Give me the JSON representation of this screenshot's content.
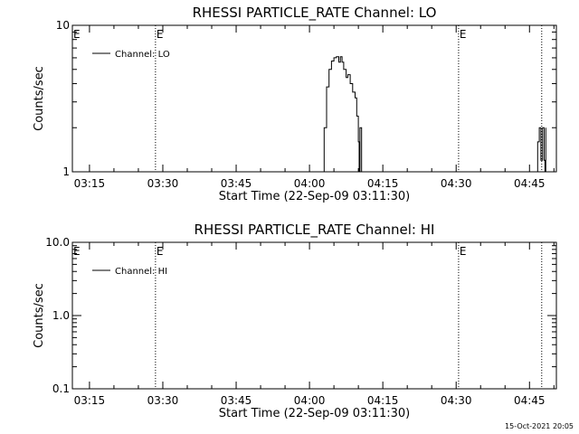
{
  "footer": {
    "timestamp": "15-Oct-2021 20:05"
  },
  "chart_data": [
    {
      "type": "line",
      "title": "RHESSI PARTICLE_RATE Channel: LO",
      "xlabel": "Start Time (22-Sep-09 03:11:30)",
      "ylabel": "Counts/sec",
      "y_scale": "log",
      "xlim": [
        "03:11:30",
        "04:50:30"
      ],
      "ylim": [
        1,
        10
      ],
      "y_ticks": [
        1,
        10
      ],
      "y_tick_labels": [
        "1",
        "10"
      ],
      "x_ticks": [
        "03:15",
        "03:30",
        "03:45",
        "04:00",
        "04:15",
        "04:30",
        "04:45"
      ],
      "grid": false,
      "legend_position": "top-left",
      "event_lines": [
        {
          "time": "03:28:30",
          "label": "E"
        },
        {
          "time": "04:30:30",
          "label": "E"
        },
        {
          "time": "04:47:30",
          "label": ""
        }
      ],
      "series": [
        {
          "name": "Channel: LO",
          "segments": [
            {
              "x": [
                "04:02:30",
                "04:03:00",
                "04:03:30",
                "04:04:00",
                "04:04:30",
                "04:05:00",
                "04:05:30",
                "04:06:00",
                "04:06:20",
                "04:06:40",
                "04:07:00",
                "04:07:30",
                "04:07:50",
                "04:08:20",
                "04:08:50",
                "04:09:20",
                "04:09:40",
                "04:10:00",
                "04:10:10",
                "04:10:20",
                "04:10:40"
              ],
              "y": [
                1,
                2.0,
                3.8,
                5.0,
                5.7,
                6.0,
                6.1,
                5.6,
                6.1,
                5.6,
                5.0,
                4.4,
                4.6,
                4.0,
                3.5,
                3.2,
                2.4,
                1.6,
                1,
                2.0,
                1
              ]
            },
            {
              "x": [
                "04:46:20",
                "04:46:40",
                "04:47:00",
                "04:47:20",
                "04:47:40",
                "04:48:00",
                "04:48:10",
                "04:48:20"
              ],
              "y": [
                1,
                1.6,
                2.0,
                1.2,
                2.0,
                1.2,
                1,
                2.0
              ]
            }
          ]
        }
      ]
    },
    {
      "type": "line",
      "title": "RHESSI PARTICLE_RATE Channel: HI",
      "xlabel": "Start Time (22-Sep-09 03:11:30)",
      "ylabel": "Counts/sec",
      "y_scale": "log",
      "xlim": [
        "03:11:30",
        "04:50:30"
      ],
      "ylim": [
        0.1,
        10
      ],
      "y_ticks": [
        0.1,
        1,
        10
      ],
      "y_tick_labels": [
        "0.1",
        "1.0",
        "10.0"
      ],
      "x_ticks": [
        "03:15",
        "03:30",
        "03:45",
        "04:00",
        "04:15",
        "04:30",
        "04:45"
      ],
      "grid": false,
      "legend_position": "top-left",
      "event_lines": [
        {
          "time": "03:28:30",
          "label": "E"
        },
        {
          "time": "04:30:30",
          "label": "E"
        },
        {
          "time": "04:47:30",
          "label": ""
        }
      ],
      "series": [
        {
          "name": "Channel: HI",
          "segments": []
        }
      ]
    }
  ]
}
